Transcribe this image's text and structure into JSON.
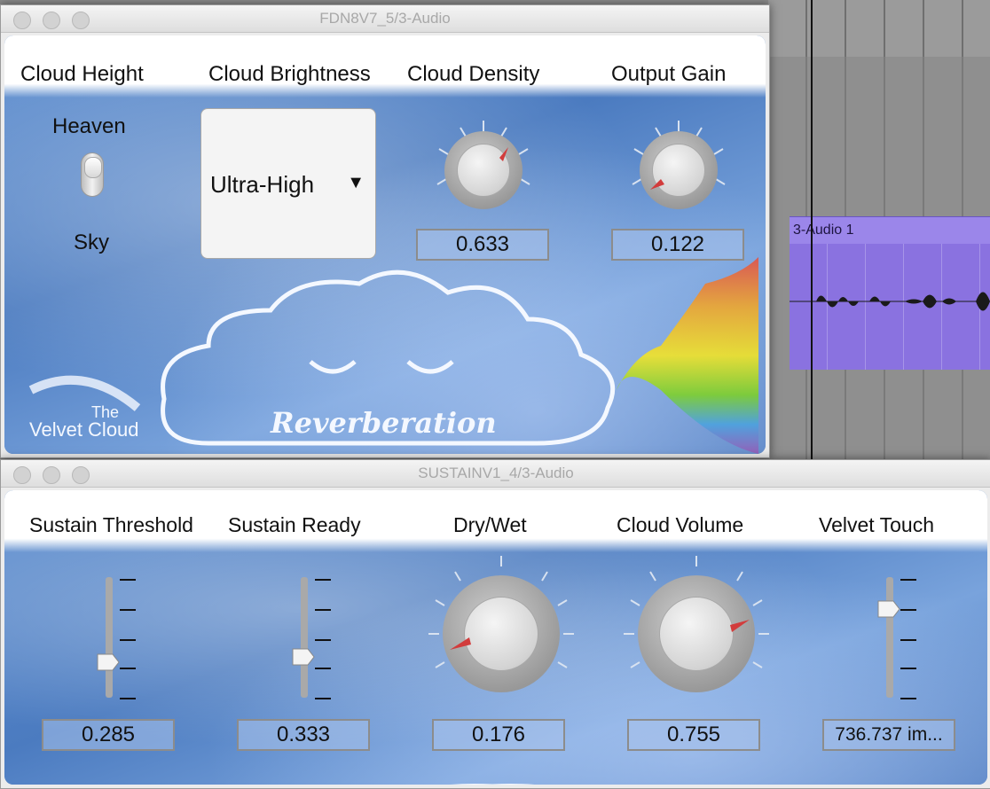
{
  "daw": {
    "track_name": "3-Audio 1"
  },
  "plugin1": {
    "window_title": "FDN8V7_5/3-Audio",
    "labels": {
      "cloud_height": "Cloud Height",
      "cloud_brightness": "Cloud Brightness",
      "cloud_density": "Cloud Density",
      "output_gain": "Output Gain"
    },
    "toggle": {
      "top_label": "Heaven",
      "bottom_label": "Sky",
      "state": "Heaven"
    },
    "brightness_select": {
      "selected": "Ultra-High",
      "arrow": "▼"
    },
    "cloud_density_value": "0.633",
    "output_gain_value": "0.122",
    "branding": {
      "art_text": "Reverberation",
      "logo_line1": "The",
      "logo_line2": "Velvet Cloud"
    }
  },
  "plugin2": {
    "window_title": "SUSTAINV1_4/3-Audio",
    "labels": {
      "sustain_threshold": "Sustain Threshold",
      "sustain_ready": "Sustain Ready",
      "dry_wet": "Dry/Wet",
      "cloud_volume": "Cloud Volume",
      "velvet_touch": "Velvet Touch"
    },
    "sustain_threshold_value": "0.285",
    "sustain_ready_value": "0.333",
    "dry_wet_value": "0.176",
    "cloud_volume_value": "0.755",
    "velvet_touch_value": "736.737 im..."
  },
  "colors": {
    "panel_blue": "#5b87c4",
    "track_purple": "#8a72e0",
    "pointer_red": "#d23c3c"
  },
  "icons": [
    "window-close-icon",
    "window-minimize-icon",
    "window-zoom-icon",
    "dropdown-arrow-icon",
    "knob-pointer-icon",
    "slider-thumb-icon"
  ]
}
